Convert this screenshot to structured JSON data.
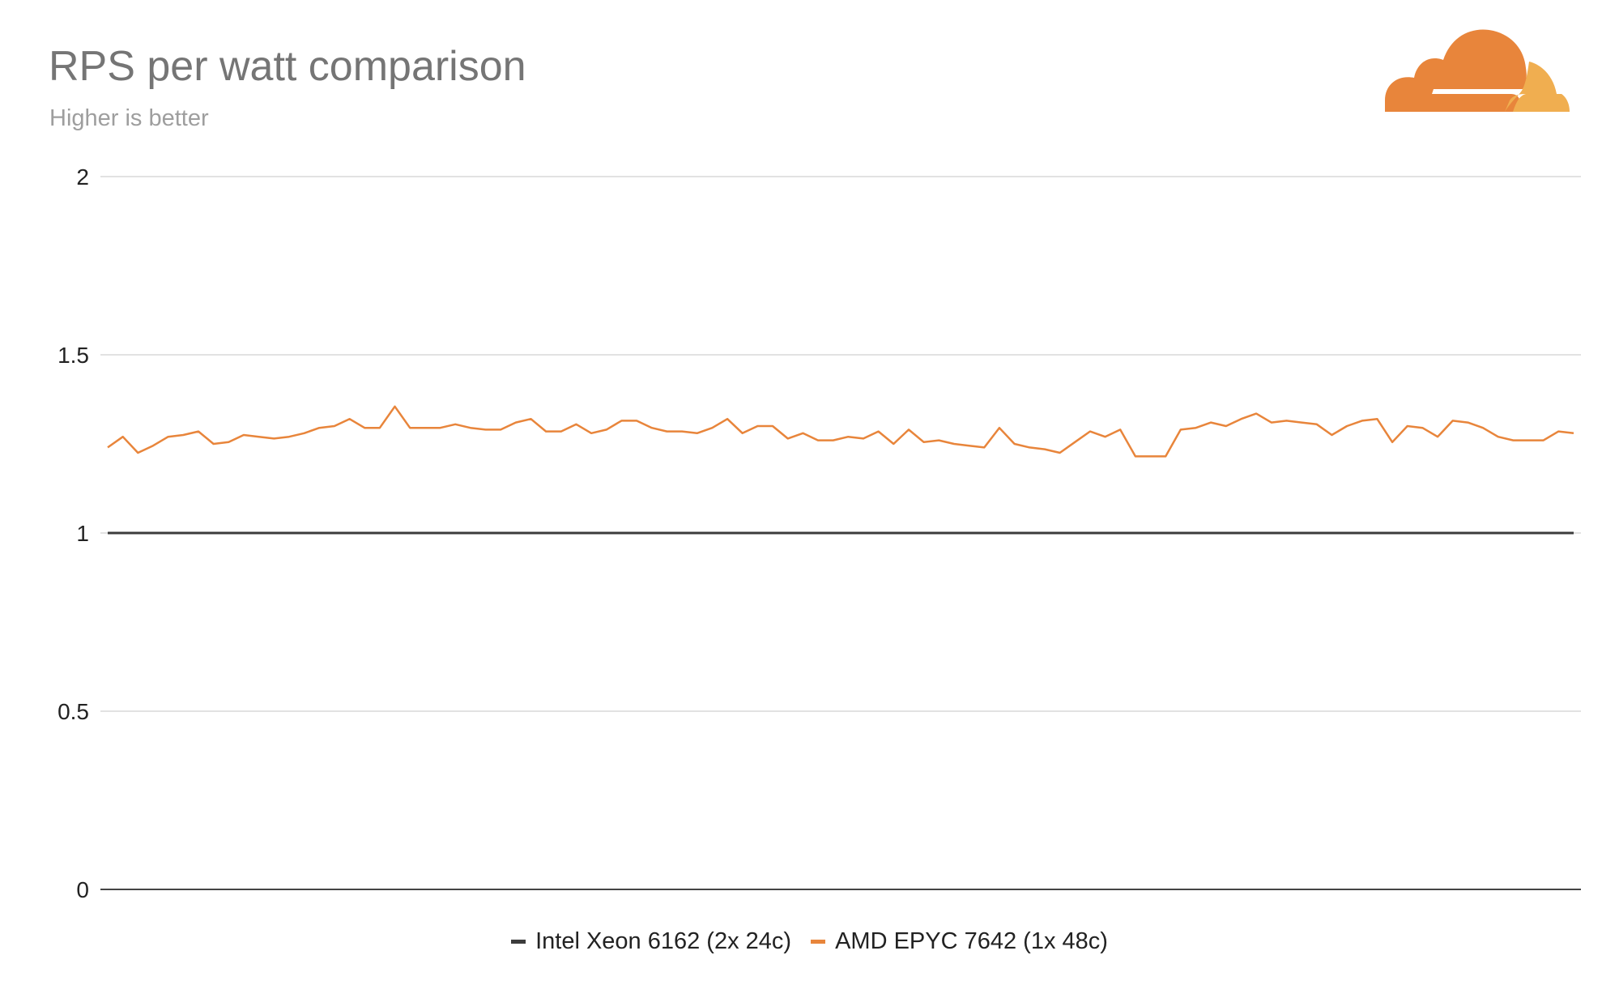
{
  "header": {
    "title": "RPS per watt comparison",
    "subtitle": "Higher is better"
  },
  "logo": {
    "icon": "cloudflare-cloud-icon",
    "colors": [
      "#e8853b",
      "#f0ae50"
    ]
  },
  "colors": {
    "intel": "#3c3c3c",
    "amd": "#e8853b",
    "grid": "#d9d9d9",
    "axis": "#444444"
  },
  "chart_data": {
    "type": "line",
    "title": "RPS per watt comparison",
    "subtitle": "Higher is better",
    "xlabel": "",
    "ylabel": "",
    "ylim": [
      0,
      2
    ],
    "yticks": [
      "0",
      "0.5",
      "1",
      "1.5",
      "2"
    ],
    "grid": true,
    "legend_position": "bottom",
    "x_points": 98,
    "series": [
      {
        "name": "Intel Xeon 6162 (2x 24c)",
        "color": "#3c3c3c",
        "values": [
          1,
          1,
          1,
          1,
          1,
          1,
          1,
          1,
          1,
          1,
          1,
          1,
          1,
          1,
          1,
          1,
          1,
          1,
          1,
          1,
          1,
          1,
          1,
          1,
          1,
          1,
          1,
          1,
          1,
          1,
          1,
          1,
          1,
          1,
          1,
          1,
          1,
          1,
          1,
          1,
          1,
          1,
          1,
          1,
          1,
          1,
          1,
          1,
          1,
          1,
          1,
          1,
          1,
          1,
          1,
          1,
          1,
          1,
          1,
          1,
          1,
          1,
          1,
          1,
          1,
          1,
          1,
          1,
          1,
          1,
          1,
          1,
          1,
          1,
          1,
          1,
          1,
          1,
          1,
          1,
          1,
          1,
          1,
          1,
          1,
          1,
          1,
          1,
          1,
          1,
          1,
          1,
          1,
          1,
          1,
          1,
          1,
          1
        ]
      },
      {
        "name": "AMD EPYC 7642 (1x 48c)",
        "color": "#e8853b",
        "values": [
          1.24,
          1.27,
          1.225,
          1.245,
          1.27,
          1.275,
          1.285,
          1.25,
          1.255,
          1.275,
          1.27,
          1.265,
          1.27,
          1.28,
          1.295,
          1.3,
          1.32,
          1.295,
          1.295,
          1.355,
          1.295,
          1.295,
          1.295,
          1.305,
          1.295,
          1.29,
          1.29,
          1.31,
          1.32,
          1.285,
          1.285,
          1.305,
          1.28,
          1.29,
          1.315,
          1.315,
          1.295,
          1.285,
          1.285,
          1.28,
          1.295,
          1.32,
          1.28,
          1.3,
          1.3,
          1.265,
          1.28,
          1.26,
          1.26,
          1.27,
          1.265,
          1.285,
          1.25,
          1.29,
          1.255,
          1.26,
          1.25,
          1.245,
          1.24,
          1.295,
          1.25,
          1.24,
          1.235,
          1.225,
          1.255,
          1.285,
          1.27,
          1.29,
          1.215,
          1.215,
          1.215,
          1.29,
          1.295,
          1.31,
          1.3,
          1.32,
          1.335,
          1.31,
          1.315,
          1.31,
          1.305,
          1.275,
          1.3,
          1.315,
          1.32,
          1.255,
          1.3,
          1.295,
          1.27,
          1.315,
          1.31,
          1.295,
          1.27,
          1.26,
          1.26,
          1.26,
          1.285,
          1.28
        ]
      }
    ]
  }
}
